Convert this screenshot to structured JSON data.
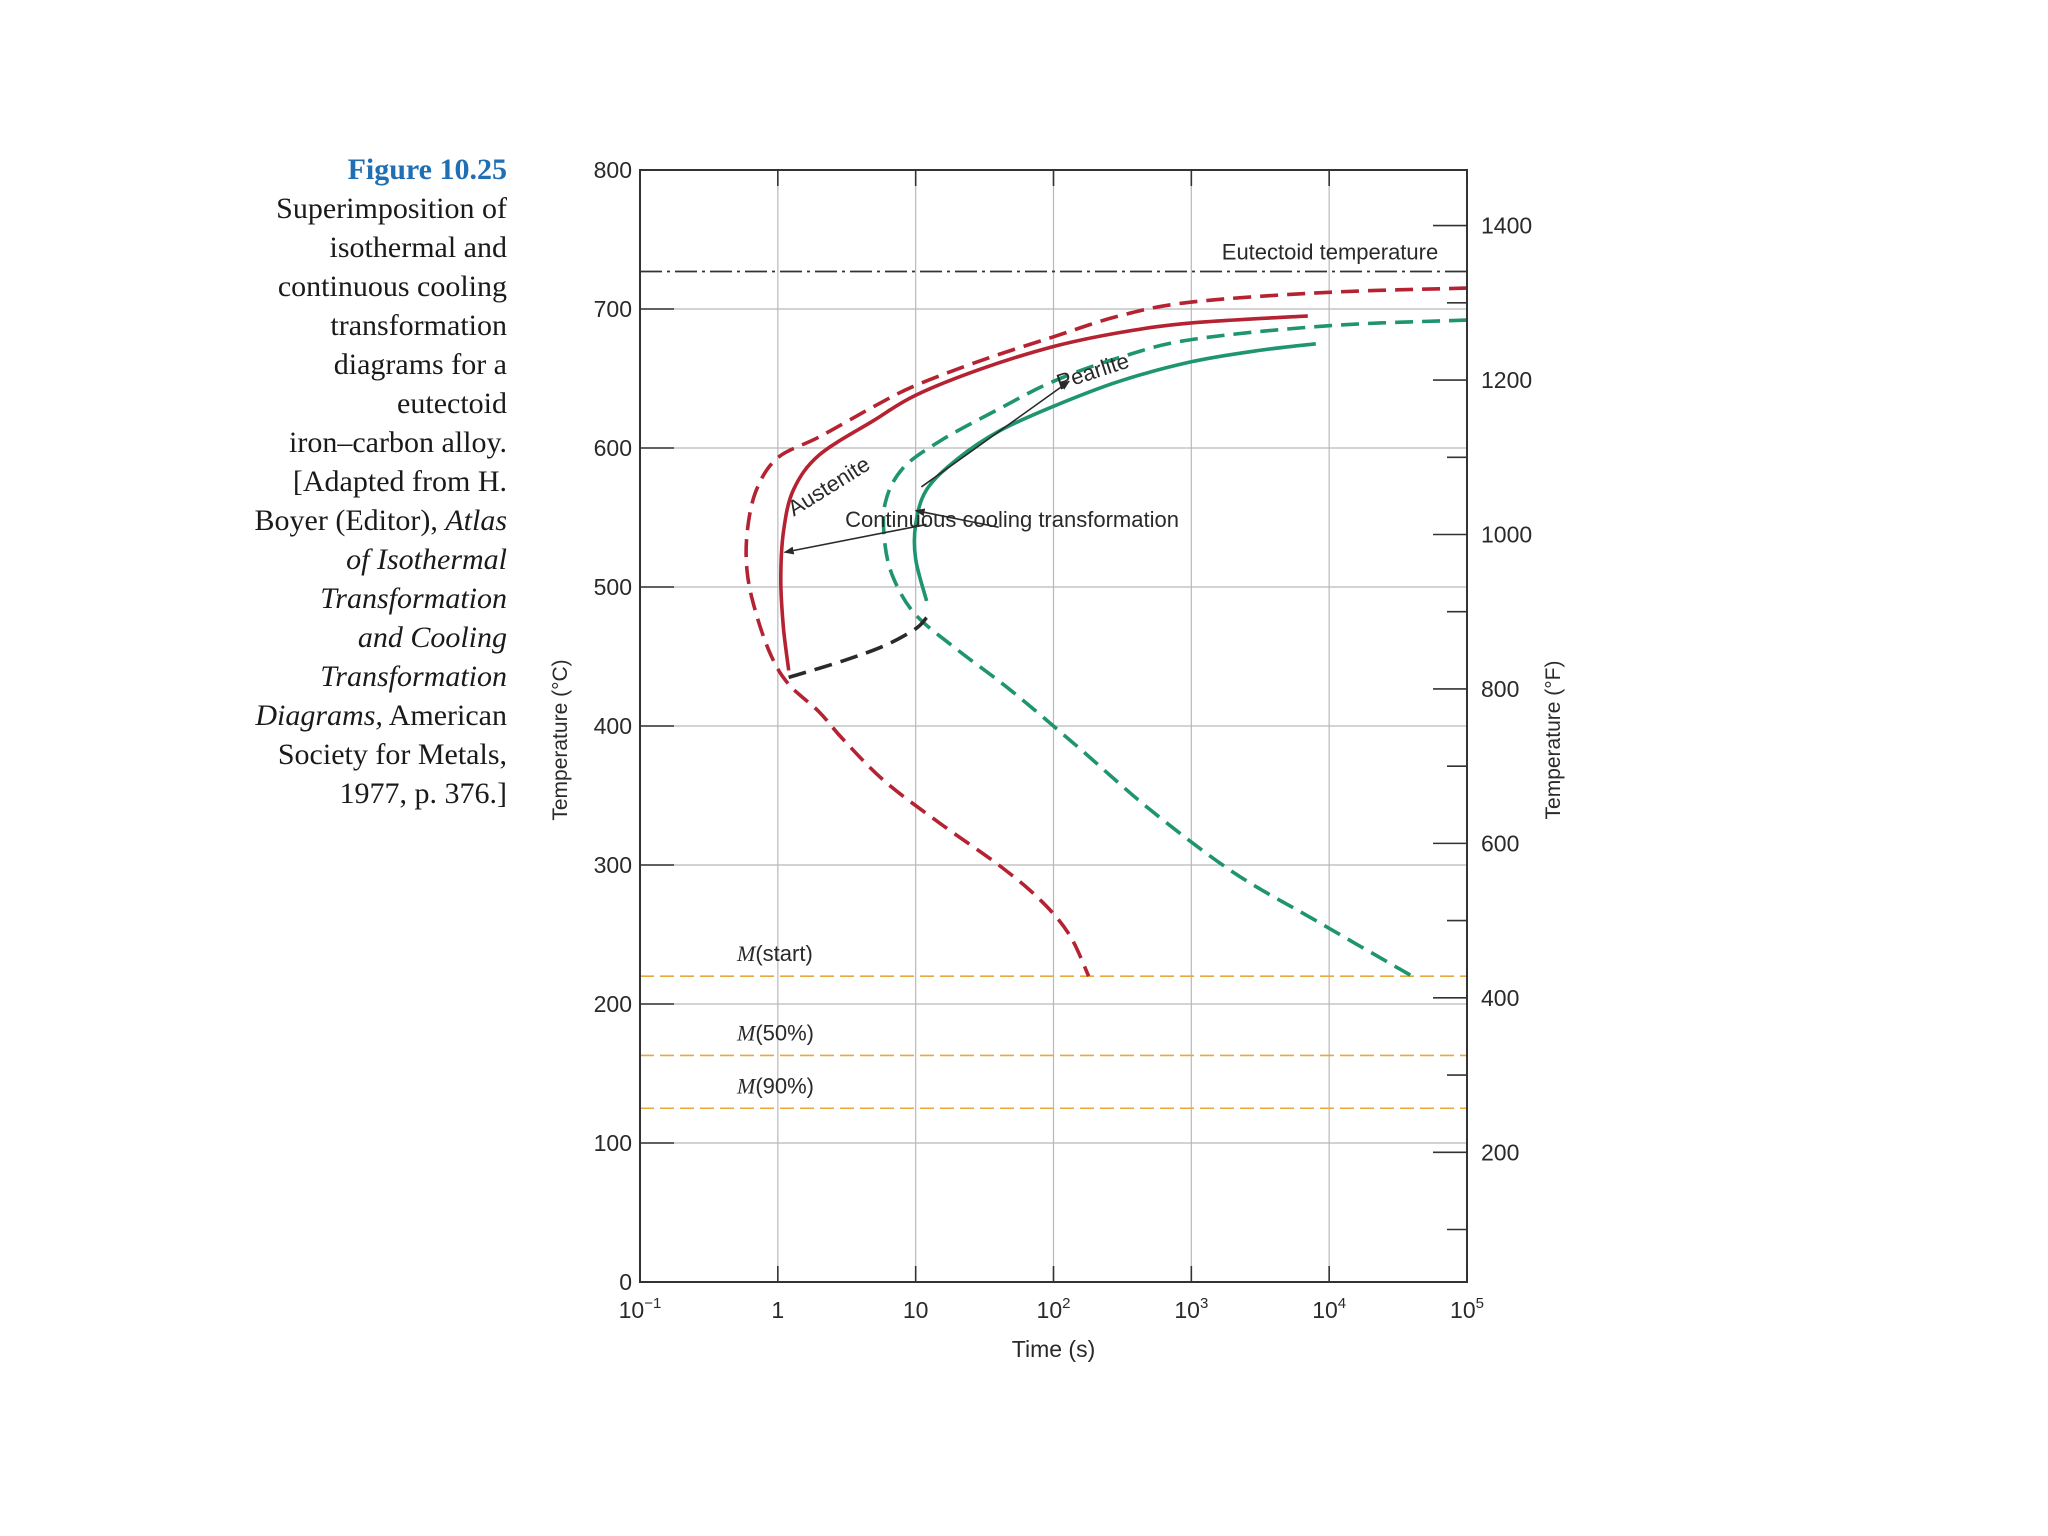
{
  "caption": {
    "figure_label": "Figure 10.25",
    "lines": [
      {
        "text": "Superimposition of"
      },
      {
        "text": "isothermal and"
      },
      {
        "text": "continuous cooling"
      },
      {
        "text": "transformation"
      },
      {
        "text": "diagrams for a"
      },
      {
        "text": "eutectoid"
      },
      {
        "text": "iron–carbon alloy."
      },
      {
        "text": "[Adapted from H."
      },
      {
        "pre": "Boyer (Editor), ",
        "italic": "Atlas"
      },
      {
        "italic": "of Isothermal"
      },
      {
        "italic": "Transformation"
      },
      {
        "italic": "and Cooling"
      },
      {
        "italic": "Transformation"
      },
      {
        "italic": "Diagrams,",
        "post": " American"
      },
      {
        "text": "Society for Metals,"
      },
      {
        "text": "1977, p. 376.]"
      }
    ]
  },
  "chart_data": {
    "type": "line",
    "xlabel": "Time (s)",
    "ylabel": "Temperature (°C)",
    "ylabel_right": "Temperature (°F)",
    "x_scale": "log",
    "xlim": [
      0.1,
      100000
    ],
    "ylim": [
      0,
      800
    ],
    "x_ticks": [
      {
        "value": 0.1,
        "label": "10",
        "sup": "−1"
      },
      {
        "value": 1,
        "label": "1",
        "sup": ""
      },
      {
        "value": 10,
        "label": "10",
        "sup": ""
      },
      {
        "value": 100,
        "label": "10",
        "sup": "2"
      },
      {
        "value": 1000,
        "label": "10",
        "sup": "3"
      },
      {
        "value": 10000,
        "label": "10",
        "sup": "4"
      },
      {
        "value": 100000,
        "label": "10",
        "sup": "5"
      }
    ],
    "y_ticks": [
      0,
      100,
      200,
      300,
      400,
      500,
      600,
      700,
      800
    ],
    "y_minor_ticks": [],
    "right_ticks_f": [
      200,
      400,
      600,
      800,
      1000,
      1200,
      1400
    ],
    "right_minor_ticks_f": [
      100,
      300,
      500,
      700,
      900,
      1100,
      1300
    ],
    "grid": true,
    "reference_lines": [
      {
        "name": "eutectoid",
        "label": "Eutectoid temperature",
        "y": 727,
        "color": "#333333"
      },
      {
        "name": "m-start",
        "label": "M(start)",
        "y": 220,
        "color": "#e8a93a"
      },
      {
        "name": "m-50",
        "label": "M(50%)",
        "y": 163,
        "color": "#e8a93a"
      },
      {
        "name": "m-90",
        "label": "M(90%)",
        "y": 125,
        "color": "#e8a93a"
      }
    ],
    "series": [
      {
        "id": "red-dashed",
        "color": "#b52232",
        "dash": true,
        "points": [
          [
            100000,
            715
          ],
          [
            10000,
            712
          ],
          [
            1000,
            705
          ],
          [
            300,
            695
          ],
          [
            100,
            680
          ],
          [
            30,
            663
          ],
          [
            10,
            645
          ],
          [
            5,
            630
          ],
          [
            2,
            608
          ],
          [
            1,
            593
          ],
          [
            0.7,
            570
          ],
          [
            0.6,
            540
          ],
          [
            0.6,
            510
          ],
          [
            0.7,
            480
          ],
          [
            0.9,
            450
          ],
          [
            1.2,
            430
          ],
          [
            2,
            410
          ],
          [
            3,
            390
          ],
          [
            6,
            360
          ],
          [
            15,
            330
          ],
          [
            40,
            300
          ],
          [
            80,
            275
          ],
          [
            130,
            250
          ],
          [
            180,
            220
          ]
        ]
      },
      {
        "id": "red-solid",
        "color": "#b52232",
        "dash": false,
        "points": [
          [
            7000,
            695
          ],
          [
            1000,
            690
          ],
          [
            300,
            683
          ],
          [
            100,
            673
          ],
          [
            30,
            657
          ],
          [
            10,
            638
          ],
          [
            5,
            620
          ],
          [
            2,
            595
          ],
          [
            1.3,
            570
          ],
          [
            1.1,
            540
          ],
          [
            1.05,
            505
          ],
          [
            1.1,
            470
          ],
          [
            1.2,
            440
          ]
        ]
      },
      {
        "id": "green-dashed",
        "color": "#1e9470",
        "dash": true,
        "points": [
          [
            100000,
            692
          ],
          [
            10000,
            688
          ],
          [
            1000,
            678
          ],
          [
            300,
            665
          ],
          [
            100,
            648
          ],
          [
            40,
            628
          ],
          [
            15,
            605
          ],
          [
            8,
            585
          ],
          [
            6,
            560
          ],
          [
            6,
            530
          ],
          [
            7,
            505
          ],
          [
            10,
            480
          ],
          [
            20,
            455
          ],
          [
            50,
            425
          ],
          [
            150,
            385
          ],
          [
            500,
            340
          ],
          [
            2000,
            295
          ],
          [
            8000,
            260
          ],
          [
            40000,
            220
          ]
        ]
      },
      {
        "id": "green-solid",
        "color": "#1e9470",
        "dash": false,
        "points": [
          [
            8000,
            675
          ],
          [
            3000,
            670
          ],
          [
            1000,
            662
          ],
          [
            300,
            648
          ],
          [
            100,
            630
          ],
          [
            40,
            612
          ],
          [
            20,
            592
          ],
          [
            12,
            570
          ],
          [
            10,
            545
          ],
          [
            10,
            520
          ],
          [
            12,
            490
          ]
        ]
      },
      {
        "id": "black-dashed",
        "color": "#2a2a2a",
        "dash": true,
        "points": [
          [
            1.2,
            435
          ],
          [
            3,
            447
          ],
          [
            6,
            458
          ],
          [
            10,
            470
          ],
          [
            12,
            478
          ]
        ]
      }
    ],
    "annotations": [
      {
        "name": "annotation-austenite",
        "text": "Austenite",
        "x": 2.5,
        "y": 568,
        "rotate": -32
      },
      {
        "name": "annotation-pearlite",
        "text": "Pearlite",
        "x": 200,
        "y": 650,
        "rotate": -18
      },
      {
        "name": "annotation-cct",
        "text": "Continuous cooling transformation",
        "x": 50,
        "y": 543,
        "rotate": 0
      }
    ],
    "arrows": [
      {
        "from": [
          11,
          572
        ],
        "to": [
          130,
          648
        ]
      },
      {
        "from": [
          12,
          545
        ],
        "to": [
          1.12,
          525
        ]
      },
      {
        "from": [
          40,
          543
        ],
        "to": [
          10,
          555
        ]
      }
    ]
  }
}
